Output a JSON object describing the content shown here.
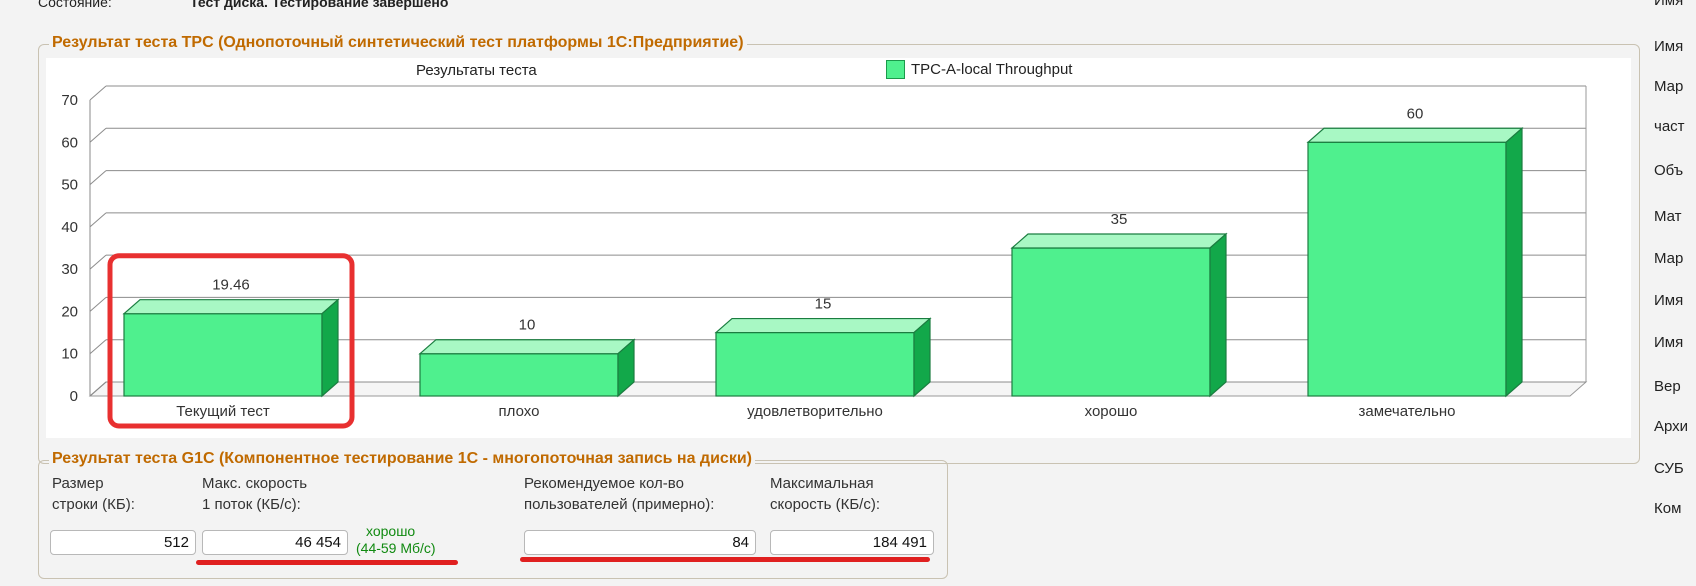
{
  "status": {
    "label": "Состояние:",
    "value": "Тест диска. Тестирование завершено"
  },
  "tpc_group": {
    "title": "Результат теста TPC (Однопоточный синтетический тест платформы 1С:Предприятие)"
  },
  "chart_data": {
    "type": "bar",
    "title": "Результаты теста",
    "categories": [
      "Текущий тест",
      "плохо",
      "удовлетворительно",
      "хорошо",
      "замечательно"
    ],
    "series": [
      {
        "name": "TPC-A-local Throughput",
        "values": [
          19.46,
          10,
          15,
          35,
          60
        ]
      }
    ],
    "data_labels": [
      "19.46",
      "10",
      "15",
      "35",
      "60"
    ],
    "ylim": [
      0,
      70
    ],
    "y_ticks": [
      "0",
      "10",
      "20",
      "30",
      "40",
      "50",
      "60",
      "70"
    ],
    "grid": true,
    "legend": "top",
    "highlighted_category": "Текущий тест",
    "colors": {
      "bar": "#4ff08e",
      "bar_top": "#a8f8c4",
      "bar_side": "#12a84a",
      "highlight": "#e83030"
    }
  },
  "g1c_group": {
    "title": "Результат теста G1C (Компонентное тестирование 1С - многопоточная запись на диски)",
    "row_size_label_1": "Размер",
    "row_size_label_2": "строки (КБ):",
    "row_size_value": "512",
    "max_speed_label_1": "Макс. скорость",
    "max_speed_label_2": "1 поток (КБ/с):",
    "max_speed_value": "46 454",
    "rating_1": "хорошо",
    "rating_2": "(44-59 Мб/с)",
    "users_label_1": "Рекомендуемое кол-во",
    "users_label_2": "пользователей (примерно):",
    "users_value": "84",
    "max_total_label_1": "Максимальная",
    "max_total_label_2": "скорость (КБ/с):",
    "max_total_value": "184 491"
  },
  "right_column": [
    "Имя",
    "Имя",
    "Мар",
    "част",
    "Объ",
    "Мат",
    "Мар",
    "Имя",
    "Имя",
    "Вер",
    "Архи",
    "СУБ",
    "Ком"
  ]
}
